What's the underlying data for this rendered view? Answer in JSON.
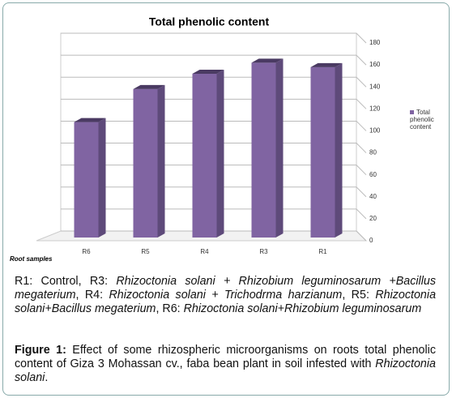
{
  "chart_data": {
    "type": "bar",
    "title": "Total phenolic content",
    "x_label": "Root samples",
    "categories": [
      "R6",
      "R5",
      "R4",
      "R3",
      "R1"
    ],
    "series": [
      {
        "name": "Total phenolic content",
        "color": "#8064a2",
        "values": [
          108,
          138,
          152,
          162,
          158
        ]
      }
    ],
    "ylim": [
      0,
      180
    ],
    "yticks": [
      0,
      20,
      40,
      60,
      80,
      100,
      120,
      140,
      160,
      180
    ],
    "grid": true,
    "legend": "right"
  },
  "caption": {
    "note": [
      "R1: Control, R3: ",
      "Rhizoctonia solani + Rhizobium leguminosarum +Bacillus megaterium",
      ", R4: ",
      "Rhizoctonia solani + Trichodrma harzianum",
      ", R5: ",
      "Rhizoctonia solani+Bacillus megaterium",
      ", R6: ",
      "Rhizoctonia solani+Rhizobium leguminosarum"
    ],
    "figure": [
      "Figure 1:",
      " Effect of some rhizospheric microorganisms on roots total phenolic content of Giza 3 Mohassan cv., faba bean plant in soil infested with ",
      "Rhizoctonia solani",
      "."
    ]
  }
}
